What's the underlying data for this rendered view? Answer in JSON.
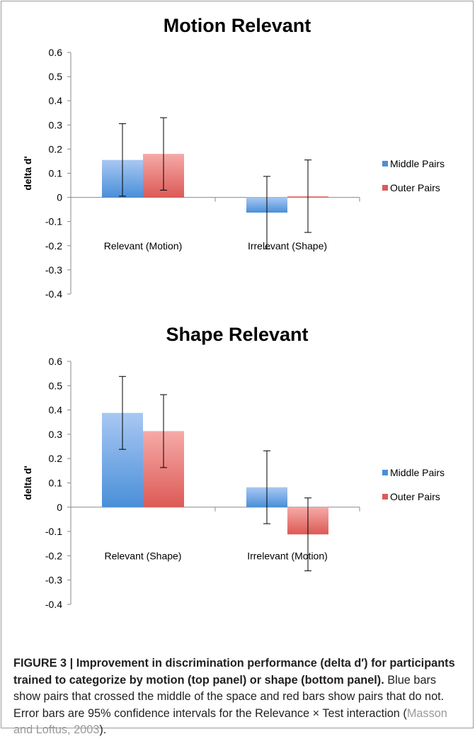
{
  "chart_data": [
    {
      "type": "bar",
      "title": "Motion Relevant",
      "ylabel": "delta d'",
      "ylim": [
        -0.4,
        0.6
      ],
      "yticks": [
        "0.6",
        "0.5",
        "0.4",
        "0.3",
        "0.2",
        "0.1",
        "0",
        "-0.1",
        "-0.2",
        "-0.3",
        "-0.4"
      ],
      "categories": [
        "Relevant (Motion)",
        "Irrelevant (Shape)"
      ],
      "series": [
        {
          "name": "Middle Pairs",
          "values": [
            0.155,
            -0.063
          ],
          "error_low": [
            0.005,
            -0.213
          ],
          "error_high": [
            0.305,
            0.087
          ]
        },
        {
          "name": "Outer Pairs",
          "values": [
            0.18,
            0.005
          ],
          "error_low": [
            0.03,
            -0.145
          ],
          "error_high": [
            0.33,
            0.155
          ]
        }
      ],
      "grid": false,
      "legend_position": "right"
    },
    {
      "type": "bar",
      "title": "Shape Relevant",
      "ylabel": "delta d'",
      "ylim": [
        -0.4,
        0.6
      ],
      "yticks": [
        "0.6",
        "0.5",
        "0.4",
        "0.3",
        "0.2",
        "0.1",
        "0",
        "-0.1",
        "-0.2",
        "-0.3",
        "-0.4"
      ],
      "categories": [
        "Relevant (Shape)",
        "Irrelevant (Motion)"
      ],
      "series": [
        {
          "name": "Middle Pairs",
          "values": [
            0.388,
            0.082
          ],
          "error_low": [
            0.238,
            -0.068
          ],
          "error_high": [
            0.538,
            0.232
          ]
        },
        {
          "name": "Outer Pairs",
          "values": [
            0.313,
            -0.112
          ],
          "error_low": [
            0.163,
            -0.262
          ],
          "error_high": [
            0.463,
            0.038
          ]
        }
      ],
      "grid": false,
      "legend_position": "right"
    }
  ],
  "colors": {
    "middle_light": "#a9c8f3",
    "middle_dark": "#4a8fd9",
    "outer_light": "#f6aaa7",
    "outer_dark": "#dc5a56",
    "axis": "#8a8a8a"
  },
  "caption": {
    "bold": "FIGURE 3 | Improvement in discrimination performance (delta d′) for participants trained to categorize by motion (top panel) or shape (bottom panel).",
    "text": " Blue bars show pairs that crossed the middle of the space and red bars show pairs that do not. Error bars are 95% confidence intervals for the Relevance × Test interaction (",
    "citation": "Masson and Loftus, 2003",
    "end": ")."
  }
}
